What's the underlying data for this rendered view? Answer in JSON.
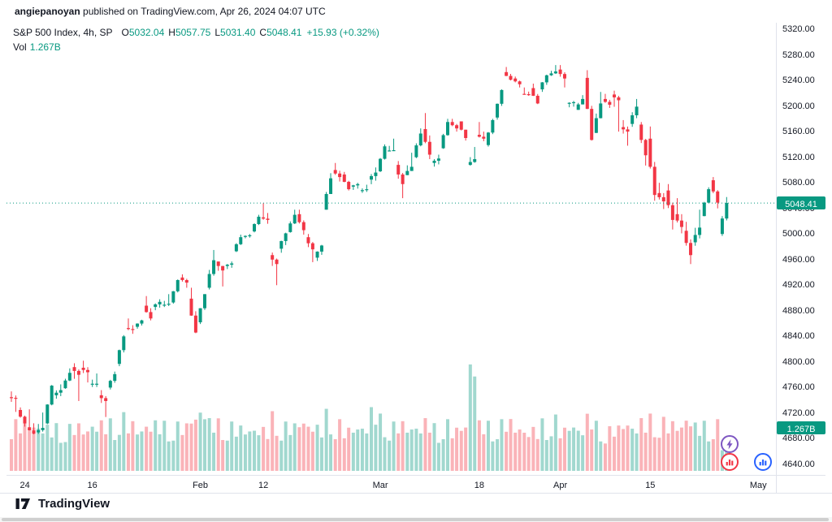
{
  "header": {
    "user": "angiepanoyan",
    "rest": " published on TradingView.com, Apr 26, 2024 04:07 UTC"
  },
  "legend": {
    "title": "S&P 500 Index, 4h, SP",
    "ohlc": [
      {
        "k": "O",
        "v": "5032.04"
      },
      {
        "k": "H",
        "v": "5057.75"
      },
      {
        "k": "L",
        "v": "5031.40"
      },
      {
        "k": "C",
        "v": "5048.41"
      }
    ],
    "change": "+15.93 (+0.32%)",
    "vol_label": "Vol",
    "vol_value": "1.267B"
  },
  "badges": {
    "price": "5048.41",
    "volume": "1.267B"
  },
  "footer": {
    "brand": "TradingView"
  },
  "colors": {
    "up": "#089981",
    "down": "#f23645",
    "badge": "#089981",
    "accent_purple": "#7e57c2",
    "accent_red": "#f23645",
    "accent_blue": "#2962ff"
  },
  "chart_data": {
    "type": "candlestick",
    "title": "S&P 500 Index, 4h, SP",
    "symbol": "S&P 500 Index",
    "timeframe": "4h",
    "exchange": "SP",
    "current": {
      "open": 5032.04,
      "high": 5057.75,
      "low": 5031.4,
      "close": 5048.41,
      "change_abs": 15.93,
      "change_pct": 0.32,
      "volume": "1.267B"
    },
    "y_axis": {
      "min": 4640,
      "max": 5320,
      "tick_interval": 40,
      "label_format": "0.00"
    },
    "x_axis": {
      "labels": [
        {
          "text": "24",
          "day": 1.5
        },
        {
          "text": "16",
          "day": 9
        },
        {
          "text": "Feb",
          "day": 21
        },
        {
          "text": "12",
          "day": 28
        },
        {
          "text": "Mar",
          "day": 41
        },
        {
          "text": "18",
          "day": 52
        },
        {
          "text": "Apr",
          "day": 61
        },
        {
          "text": "15",
          "day": 71
        },
        {
          "text": "May",
          "day": 83
        }
      ]
    },
    "volume_unit": "B",
    "days": [
      [
        "Jan-02",
        4745,
        4754,
        4722,
        4743,
        2.2
      ],
      [
        "Jan-03",
        4725,
        4729,
        4699,
        4704,
        2.3
      ],
      [
        "Jan-04",
        4698,
        4726,
        4687,
        4688,
        2.2
      ],
      [
        "Jan-05",
        4690,
        4721,
        4682,
        4697,
        2.1
      ],
      [
        "Jan-08",
        4704,
        4764,
        4700,
        4763,
        2.1
      ],
      [
        "Jan-09",
        4748,
        4765,
        4730,
        4756,
        2.0
      ],
      [
        "Jan-10",
        4759,
        4790,
        4756,
        4783,
        2.0
      ],
      [
        "Jan-11",
        4792,
        4798,
        4739,
        4780,
        2.2
      ],
      [
        "Jan-12",
        4791,
        4802,
        4768,
        4784,
        2.0
      ],
      [
        "Jan-16",
        4766,
        4782,
        4749,
        4766,
        2.2
      ],
      [
        "Jan-17",
        4748,
        4756,
        4714,
        4739,
        2.3
      ],
      [
        "Jan-18",
        4760,
        4785,
        4750,
        4781,
        2.2
      ],
      [
        "Jan-19",
        4797,
        4842,
        4785,
        4840,
        2.5
      ],
      [
        "Jan-22",
        4853,
        4868,
        4844,
        4850,
        2.3
      ],
      [
        "Jan-23",
        4855,
        4866,
        4845,
        4865,
        2.0
      ],
      [
        "Jan-24",
        4888,
        4903,
        4865,
        4868,
        2.2
      ],
      [
        "Jan-25",
        4886,
        4898,
        4869,
        4894,
        2.3
      ],
      [
        "Jan-26",
        4888,
        4906,
        4881,
        4891,
        2.1
      ],
      [
        "Jan-29",
        4893,
        4929,
        4887,
        4928,
        2.1
      ],
      [
        "Jan-30",
        4932,
        4937,
        4916,
        4924,
        2.2
      ],
      [
        "Jan-31",
        4899,
        4916,
        4845,
        4846,
        2.6
      ],
      [
        "Feb-01",
        4862,
        4906,
        4853,
        4906,
        2.9
      ],
      [
        "Feb-02",
        4916,
        4975,
        4907,
        4959,
        2.4
      ],
      [
        "Feb-05",
        4957,
        4957,
        4918,
        4943,
        2.2
      ],
      [
        "Feb-06",
        4950,
        4957,
        4934,
        4954,
        2.1
      ],
      [
        "Feb-07",
        4973,
        4999,
        4969,
        4995,
        2.1
      ],
      [
        "Feb-08",
        4996,
        5000,
        4987,
        4998,
        2.0
      ],
      [
        "Feb-09",
        5004,
        5030,
        4999,
        5027,
        2.0
      ],
      [
        "Feb-12",
        5026,
        5048,
        5016,
        5022,
        2.0
      ],
      [
        "Feb-13",
        4967,
        4971,
        4920,
        4953,
        2.5
      ],
      [
        "Feb-14",
        4977,
        5002,
        4956,
        5001,
        2.1
      ],
      [
        "Feb-15",
        5003,
        5038,
        5000,
        5030,
        2.2
      ],
      [
        "Feb-16",
        5031,
        5038,
        4999,
        5006,
        2.4
      ],
      [
        "Feb-20",
        4995,
        5000,
        4956,
        4976,
        2.2
      ],
      [
        "Feb-21",
        4963,
        4983,
        4946,
        4982,
        2.1
      ],
      [
        "Feb-22",
        5038,
        5095,
        5038,
        5087,
        2.6
      ],
      [
        "Feb-23",
        5100,
        5111,
        5082,
        5089,
        2.2
      ],
      [
        "Feb-26",
        5093,
        5097,
        5068,
        5070,
        2.0
      ],
      [
        "Feb-27",
        5074,
        5080,
        5057,
        5078,
        2.1
      ],
      [
        "Feb-28",
        5067,
        5077,
        5058,
        5070,
        2.1
      ],
      [
        "Feb-29",
        5085,
        5104,
        5061,
        5096,
        2.9
      ],
      [
        "Mar-01",
        5098,
        5140,
        5094,
        5137,
        2.4
      ],
      [
        "Mar-04",
        5130,
        5149,
        5127,
        5131,
        2.1
      ],
      [
        "Mar-05",
        5108,
        5114,
        5056,
        5078,
        2.3
      ],
      [
        "Mar-06",
        5092,
        5127,
        5092,
        5105,
        2.1
      ],
      [
        "Mar-07",
        5120,
        5165,
        5115,
        5157,
        2.1
      ],
      [
        "Mar-08",
        5164,
        5189,
        5117,
        5124,
        2.4
      ],
      [
        "Mar-11",
        5111,
        5124,
        5092,
        5118,
        2.0
      ],
      [
        "Mar-12",
        5134,
        5180,
        5131,
        5175,
        2.2
      ],
      [
        "Mar-13",
        5175,
        5180,
        5160,
        5165,
        2.0
      ],
      [
        "Mar-14",
        5176,
        5176,
        5146,
        5150,
        2.2
      ],
      [
        "Mar-15",
        5108,
        5136,
        5104,
        5117,
        5.3
      ],
      [
        "Mar-18",
        5155,
        5175,
        5145,
        5149,
        2.3
      ],
      [
        "Mar-19",
        5139,
        5180,
        5131,
        5178,
        2.1
      ],
      [
        "Mar-20",
        5182,
        5226,
        5171,
        5225,
        2.2
      ],
      [
        "Mar-21",
        5253,
        5261,
        5240,
        5241,
        2.4
      ],
      [
        "Mar-22",
        5243,
        5246,
        5229,
        5234,
        2.1
      ],
      [
        "Mar-25",
        5219,
        5229,
        5216,
        5218,
        1.9
      ],
      [
        "Mar-26",
        5228,
        5235,
        5203,
        5204,
        2.0
      ],
      [
        "Mar-27",
        5226,
        5249,
        5213,
        5248,
        2.2
      ],
      [
        "Mar-28",
        5248,
        5264,
        5245,
        5254,
        2.4
      ],
      [
        "Apr-01",
        5257,
        5264,
        5229,
        5243,
        2.0
      ],
      [
        "Apr-02",
        5204,
        5208,
        5184,
        5206,
        2.2
      ],
      [
        "Apr-03",
        5194,
        5217,
        5194,
        5211,
        2.0
      ],
      [
        "Apr-04",
        5244,
        5256,
        5146,
        5147,
        2.6
      ],
      [
        "Apr-05",
        5158,
        5222,
        5157,
        5204,
        2.1
      ],
      [
        "Apr-08",
        5211,
        5219,
        5197,
        5202,
        1.9
      ],
      [
        "Apr-09",
        5218,
        5224,
        5160,
        5209,
        2.1
      ],
      [
        "Apr-10",
        5167,
        5178,
        5138,
        5160,
        2.3
      ],
      [
        "Apr-11",
        5172,
        5211,
        5157,
        5199,
        2.1
      ],
      [
        "Apr-12",
        5171,
        5175,
        5107,
        5123,
        2.4
      ],
      [
        "Apr-15",
        5149,
        5168,
        5052,
        5061,
        2.4
      ],
      [
        "Apr-16",
        5064,
        5080,
        5039,
        5051,
        2.3
      ],
      [
        "Apr-17",
        5068,
        5078,
        5007,
        5022,
        2.3
      ],
      [
        "Apr-18",
        5031,
        5056,
        5001,
        5011,
        2.2
      ],
      [
        "Apr-19",
        5005,
        5019,
        4953,
        4967,
        2.5
      ],
      [
        "Apr-22",
        4987,
        5038,
        4969,
        5010,
        2.2
      ],
      [
        "Apr-23",
        5028,
        5073,
        5027,
        5070,
        2.1
      ],
      [
        "Apr-24",
        5084,
        5089,
        5040,
        5049,
        2.2
      ],
      [
        "Apr-25",
        5000,
        5057.75,
        4990,
        5048.41,
        1.267
      ]
    ]
  }
}
